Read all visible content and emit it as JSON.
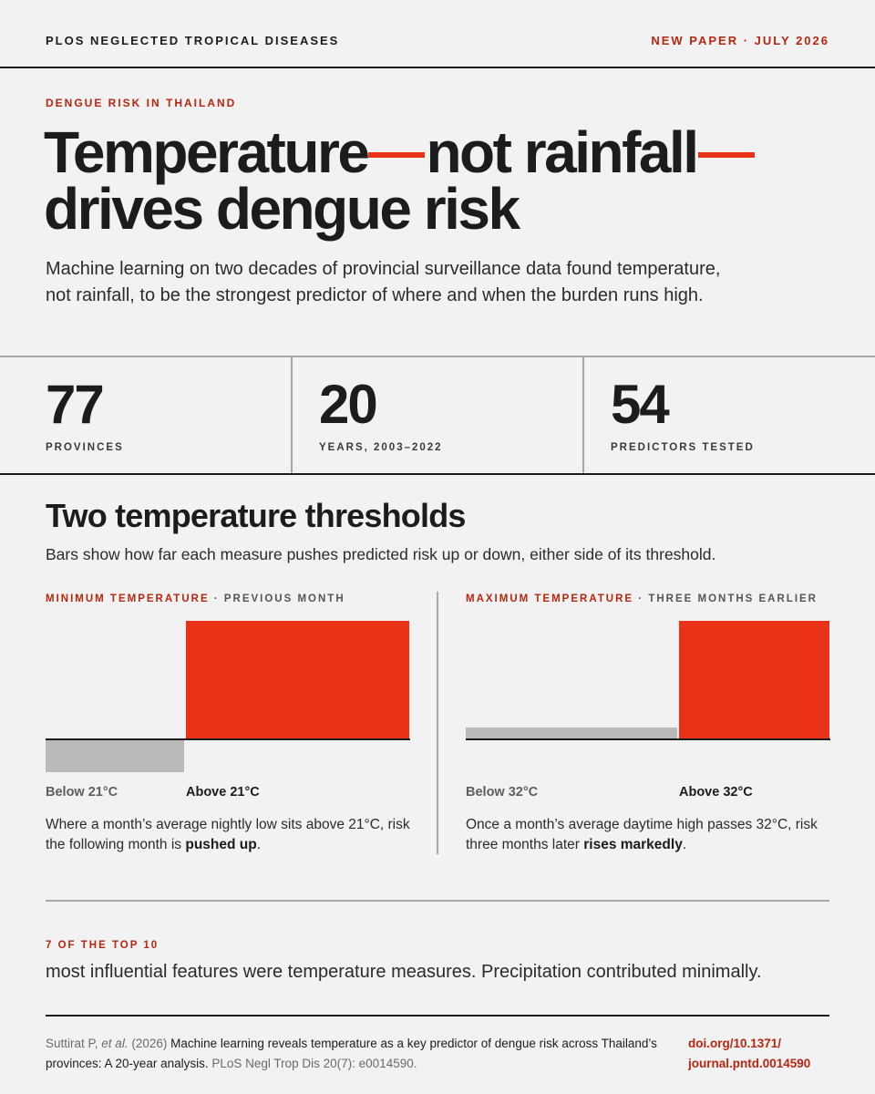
{
  "header": {
    "journal": "PLOS NEGLECTED TROPICAL DISEASES",
    "issue": "NEW PAPER · JULY 2026"
  },
  "hero": {
    "kicker": "DENGUE RISK IN THAILAND",
    "headline_part1": "Temperature",
    "headline_part2": "not rainfall",
    "headline_part3": "drives dengue risk",
    "deck": "Machine learning on two decades of provincial surveillance data found temperature, not rainfall, to be the strongest predictor of where and when the burden runs high."
  },
  "stats": [
    {
      "value": "77",
      "label": "PROVINCES"
    },
    {
      "value": "20",
      "label": "YEARS, 2003–2022"
    },
    {
      "value": "54",
      "label": "PREDICTORS TESTED"
    }
  ],
  "thresholds": {
    "title": "Two temperature thresholds",
    "subtitle": "Bars show how far each measure pushes predicted risk up or down, either side of its threshold."
  },
  "chart_data": [
    {
      "type": "bar",
      "title_accent": "MINIMUM TEMPERATURE",
      "title_rest": " · PREVIOUS MONTH",
      "categories": [
        "Below 21°C",
        "Above 21°C"
      ],
      "values": [
        -0.28,
        1.0
      ],
      "ylim": [
        -0.28,
        1.0
      ],
      "colors": [
        "#bbbab8",
        "#e93218"
      ],
      "desc_pre": "Where a month’s average nightly low sits above 21°C, risk the following month is ",
      "desc_bold": "pushed up",
      "desc_post": "."
    },
    {
      "type": "bar",
      "title_accent": "MAXIMUM TEMPERATURE",
      "title_rest": " · THREE MONTHS EARLIER",
      "categories": [
        "Below 32°C",
        "Above 32°C"
      ],
      "values": [
        0.1,
        1.0
      ],
      "ylim": [
        -0.28,
        1.0
      ],
      "colors": [
        "#bbbab8",
        "#e93218"
      ],
      "desc_pre": "Once a month’s average daytime high passes 32°C, risk three months later ",
      "desc_bold": "rises markedly",
      "desc_post": "."
    }
  ],
  "top_ten": {
    "kicker": "7 OF THE TOP 10",
    "text": "most influential features were temperature measures. Precipitation contributed minimally."
  },
  "citation": {
    "authors": "Suttirat P, ",
    "etal": "et al.",
    "year": " (2026) ",
    "title": "Machine learning reveals temperature as a key predictor of dengue risk across Thailand’s provinces: A 20-year analysis.",
    "journal": " PLoS Negl Trop Dis 20(7): e0014590.",
    "doi_line1": "doi.org/10.1371/",
    "doi_line2": "journal.pntd.0014590"
  },
  "colors": {
    "accent": "#e93218",
    "accent_text": "#b8260f",
    "background": "#f2f2f2",
    "ink": "#1c1c1c",
    "bar_gray": "#bbbab8"
  }
}
